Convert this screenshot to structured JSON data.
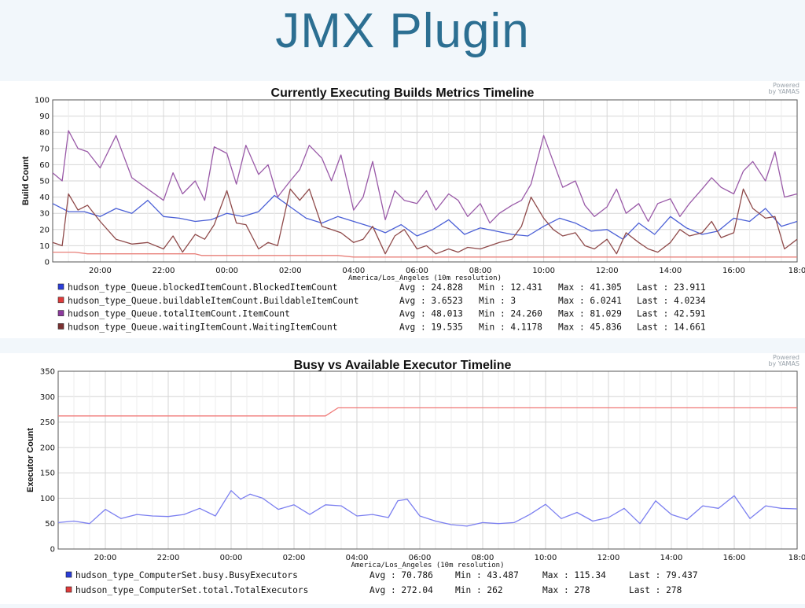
{
  "slide": {
    "title": "JMX Plugin"
  },
  "chart_data": [
    {
      "type": "line",
      "title": "Currently Executing Builds Metrics Timeline",
      "ylabel": "Build Count",
      "xlabel": "America/Los_Angeles (10m resolution)",
      "powered_by": [
        "Powered",
        "by YAMAS"
      ],
      "ylim": [
        0,
        100
      ],
      "yticks": [
        0,
        10,
        20,
        30,
        40,
        50,
        60,
        70,
        80,
        90,
        100
      ],
      "xlim": [
        18.5,
        42.0
      ],
      "xticks": [
        20,
        22,
        24,
        26,
        28,
        30,
        32,
        34,
        36,
        38,
        40,
        42
      ],
      "xticklabels": [
        "20:00",
        "22:00",
        "00:00",
        "02:00",
        "04:00",
        "06:00",
        "08:00",
        "10:00",
        "12:00",
        "14:00",
        "16:00",
        "18:0"
      ],
      "grid": true,
      "legend_position": "bottom",
      "series": [
        {
          "name": "hudson_type_Queue.blockedItemCount.BlockedItemCount",
          "color": "#4a5fd6",
          "legend_color": "#2a3dd9",
          "stats": {
            "avg": "24.828",
            "min": "12.431",
            "max": "41.305",
            "last": "23.911"
          },
          "x": [
            18.5,
            19,
            19.5,
            20,
            20.5,
            21,
            21.5,
            22,
            22.5,
            23,
            23.5,
            24,
            24.5,
            25,
            25.5,
            26,
            26.5,
            27,
            27.5,
            28,
            28.5,
            29,
            29.5,
            30,
            30.5,
            31,
            31.5,
            32,
            32.5,
            33,
            33.5,
            34,
            34.5,
            35,
            35.5,
            36,
            36.5,
            37,
            37.5,
            38,
            38.5,
            39,
            39.5,
            40,
            40.5,
            41,
            41.5,
            42
          ],
          "y": [
            36,
            31,
            31,
            28,
            33,
            30,
            38,
            28,
            27,
            25,
            26,
            30,
            28,
            31,
            41,
            34,
            27,
            24,
            28,
            25,
            22,
            18,
            23,
            16,
            20,
            26,
            17,
            21,
            19,
            17,
            16,
            22,
            27,
            24,
            19,
            20,
            14,
            24,
            17,
            28,
            21,
            17,
            19,
            27,
            25,
            33,
            22,
            25
          ]
        },
        {
          "name": "hudson_type_Queue.buildableItemCount.BuildableItemCount",
          "color": "#e8807a",
          "legend_color": "#e03a3a",
          "stats": {
            "avg": "3.6523",
            "min": "3",
            "max": "6.0241",
            "last": "4.0234"
          },
          "x": [
            18.5,
            19.2,
            19.6,
            22,
            23,
            23.2,
            24,
            25.5,
            26,
            27.5,
            28,
            28.3,
            30,
            35,
            40,
            42
          ],
          "y": [
            6,
            6,
            5,
            5,
            5,
            4,
            4,
            4,
            4,
            4,
            3,
            3,
            3,
            3,
            3,
            3
          ]
        },
        {
          "name": "hudson_type_Queue.totalItemCount.ItemCount",
          "color": "#9a5aa8",
          "legend_color": "#8d3a9e",
          "stats": {
            "avg": "48.013",
            "min": "24.260",
            "max": "81.029",
            "last": "42.591"
          },
          "x": [
            18.5,
            18.8,
            19,
            19.3,
            19.6,
            20,
            20.5,
            21,
            21.5,
            22,
            22.3,
            22.6,
            23,
            23.3,
            23.6,
            24,
            24.3,
            24.6,
            25,
            25.3,
            25.6,
            26,
            26.3,
            26.6,
            27,
            27.3,
            27.6,
            28,
            28.3,
            28.6,
            29,
            29.3,
            29.6,
            30,
            30.3,
            30.6,
            31,
            31.3,
            31.6,
            32,
            32.3,
            32.6,
            33,
            33.3,
            33.6,
            34,
            34.3,
            34.6,
            35,
            35.3,
            35.6,
            36,
            36.3,
            36.6,
            37,
            37.3,
            37.6,
            38,
            38.3,
            38.6,
            39,
            39.3,
            39.6,
            40,
            40.3,
            40.6,
            41,
            41.3,
            41.6,
            42
          ],
          "y": [
            55,
            50,
            81,
            70,
            68,
            58,
            78,
            52,
            45,
            38,
            55,
            42,
            50,
            38,
            71,
            67,
            48,
            72,
            54,
            60,
            40,
            50,
            57,
            72,
            64,
            50,
            66,
            32,
            40,
            62,
            26,
            44,
            38,
            36,
            44,
            32,
            42,
            38,
            28,
            36,
            24,
            30,
            35,
            38,
            48,
            78,
            62,
            46,
            50,
            35,
            28,
            34,
            45,
            30,
            36,
            25,
            36,
            39,
            28,
            36,
            45,
            52,
            46,
            42,
            56,
            62,
            50,
            68,
            40,
            42
          ]
        },
        {
          "name": "hudson_type_Queue.waitingItemCount.WaitingItemCount",
          "color": "#8f4a4a",
          "legend_color": "#7a3030",
          "stats": {
            "avg": "19.535",
            "min": "4.1178",
            "max": "45.836",
            "last": "14.661"
          },
          "x": [
            18.5,
            18.8,
            19,
            19.3,
            19.6,
            20,
            20.5,
            21,
            21.5,
            22,
            22.3,
            22.6,
            23,
            23.3,
            23.6,
            24,
            24.3,
            24.6,
            25,
            25.3,
            25.6,
            26,
            26.3,
            26.6,
            27,
            27.3,
            27.6,
            28,
            28.3,
            28.6,
            29,
            29.3,
            29.6,
            30,
            30.3,
            30.6,
            31,
            31.3,
            31.6,
            32,
            32.3,
            32.6,
            33,
            33.3,
            33.6,
            34,
            34.3,
            34.6,
            35,
            35.3,
            35.6,
            36,
            36.3,
            36.6,
            37,
            37.3,
            37.6,
            38,
            38.3,
            38.6,
            39,
            39.3,
            39.6,
            40,
            40.3,
            40.6,
            41,
            41.3,
            41.6,
            42
          ],
          "y": [
            12,
            10,
            42,
            32,
            35,
            25,
            14,
            11,
            12,
            8,
            16,
            6,
            17,
            14,
            23,
            44,
            24,
            23,
            8,
            12,
            10,
            45,
            38,
            45,
            22,
            20,
            18,
            12,
            14,
            22,
            5,
            16,
            20,
            8,
            10,
            5,
            8,
            6,
            9,
            8,
            10,
            12,
            14,
            22,
            40,
            27,
            20,
            16,
            18,
            10,
            8,
            14,
            5,
            18,
            12,
            8,
            6,
            12,
            20,
            16,
            18,
            25,
            15,
            18,
            45,
            33,
            27,
            28,
            8,
            14
          ]
        }
      ]
    },
    {
      "type": "line",
      "title": "Busy vs Available Executor Timeline",
      "ylabel": "Executor Count",
      "xlabel": "America/Los_Angeles (10m resolution)",
      "powered_by": [
        "Powered",
        "by YAMAS"
      ],
      "ylim": [
        0,
        350
      ],
      "yticks": [
        0,
        50,
        100,
        150,
        200,
        250,
        300,
        350
      ],
      "xlim": [
        18.5,
        42.0
      ],
      "xticks": [
        20,
        22,
        24,
        26,
        28,
        30,
        32,
        34,
        36,
        38,
        40,
        42
      ],
      "xticklabels": [
        "20:00",
        "22:00",
        "00:00",
        "02:00",
        "04:00",
        "06:00",
        "08:00",
        "10:00",
        "12:00",
        "14:00",
        "16:00",
        "18:0"
      ],
      "grid": true,
      "legend_position": "bottom",
      "series": [
        {
          "name": "hudson_type_ComputerSet.busy.BusyExecutors",
          "color": "#7b7ff0",
          "legend_color": "#2a3dd9",
          "stats": {
            "avg": "70.786",
            "min": "43.487",
            "max": "115.34",
            "last": "79.437"
          },
          "x": [
            18.5,
            19,
            19.5,
            20,
            20.5,
            21,
            21.5,
            22,
            22.5,
            23,
            23.5,
            24,
            24.3,
            24.6,
            25,
            25.5,
            26,
            26.5,
            27,
            27.5,
            28,
            28.5,
            29,
            29.3,
            29.6,
            30,
            30.5,
            31,
            31.5,
            32,
            32.5,
            33,
            33.5,
            34,
            34.5,
            35,
            35.5,
            36,
            36.5,
            37,
            37.5,
            38,
            38.5,
            39,
            39.5,
            40,
            40.5,
            41,
            41.5,
            42
          ],
          "y": [
            52,
            55,
            50,
            78,
            60,
            68,
            65,
            64,
            68,
            80,
            65,
            115,
            98,
            108,
            100,
            78,
            87,
            68,
            87,
            85,
            65,
            68,
            62,
            95,
            98,
            65,
            55,
            48,
            45,
            52,
            50,
            52,
            68,
            88,
            60,
            72,
            55,
            62,
            80,
            50,
            95,
            68,
            58,
            85,
            80,
            105,
            60,
            85,
            80,
            79
          ]
        },
        {
          "name": "hudson_type_ComputerSet.total.TotalExecutors",
          "color": "#f07a78",
          "legend_color": "#e03a3a",
          "stats": {
            "avg": "272.04",
            "min": "262",
            "max": "278",
            "last": "278"
          },
          "x": [
            18.5,
            27.0,
            27.4,
            42.0
          ],
          "y": [
            262,
            262,
            278,
            278
          ]
        }
      ]
    }
  ]
}
